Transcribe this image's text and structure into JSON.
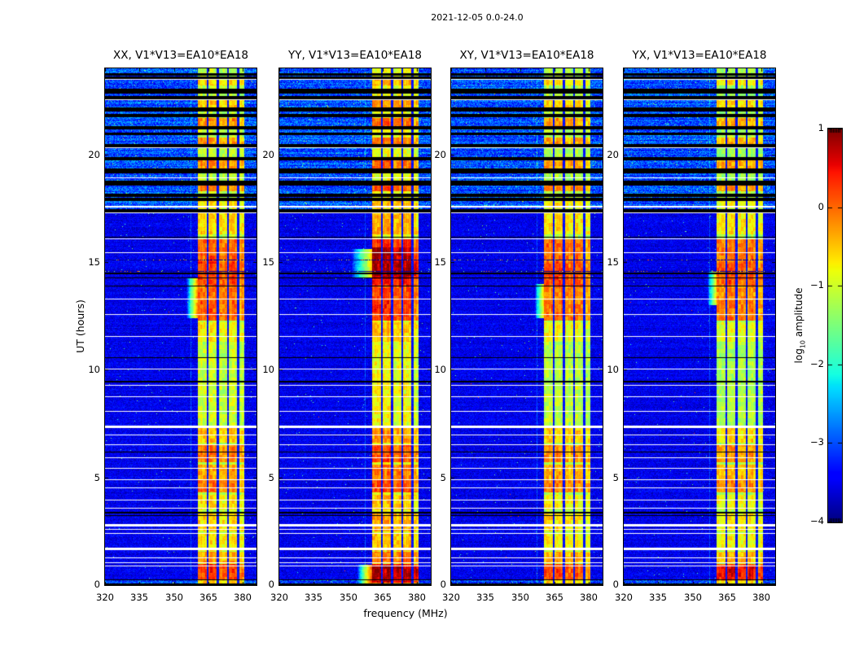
{
  "figure": {
    "title": "2021-12-05 0.0-24.0",
    "xlabel": "frequency (MHz)",
    "ylabel": "UT (hours)",
    "background_color": "#ffffff",
    "text_color": "#000000"
  },
  "chart_data": {
    "type": "heatmap",
    "title": "2021-12-05 0.0-24.0",
    "xlabel": "frequency (MHz)",
    "ylabel": "UT (hours)",
    "colormap": "jet",
    "subplots": [
      {
        "title": "XX, V1*V13=EA10*EA18"
      },
      {
        "title": "YY, V1*V13=EA10*EA18"
      },
      {
        "title": "XY, V1*V13=EA10*EA18"
      },
      {
        "title": "YX, V1*V13=EA10*EA18"
      }
    ],
    "x_range_mhz": [
      320,
      386
    ],
    "x_ticks": [
      "320",
      "335",
      "350",
      "365",
      "380"
    ],
    "x_tick_values": [
      320,
      335,
      350,
      365,
      380
    ],
    "y_range_hours": [
      0,
      24
    ],
    "y_ticks": [
      "0",
      "5",
      "10",
      "15",
      "20"
    ],
    "y_tick_values": [
      0,
      5,
      10,
      15,
      20
    ],
    "colorbar": {
      "label_prefix": "log",
      "label_sub": "10",
      "label_suffix": " amplitude",
      "ticks": [
        "1",
        "0",
        "−1",
        "−2",
        "−3",
        "−4"
      ],
      "tick_values": [
        1,
        0,
        -1,
        -2,
        -3,
        -4
      ],
      "vmin": -4,
      "vmax": 1
    },
    "features": {
      "rfi_band": {
        "freq_start": 360.3,
        "freq_stop": 380.6,
        "dividers_mhz": [
          364.8,
          369.2,
          373.6,
          378.0
        ],
        "divider_width_mhz": 0.85,
        "sub_gain": [
          1.0,
          1.05,
          0.95,
          1.0,
          0.8
        ]
      },
      "faint_line_mhz": 357.3,
      "noisy_top_region_hours": [
        17.35,
        24.0
      ],
      "white_rows": [
        [
          23.5,
          1
        ],
        [
          22.55,
          1
        ],
        [
          20.35,
          1
        ],
        [
          18.92,
          1
        ],
        [
          17.62,
          2
        ],
        [
          17.3,
          1
        ],
        [
          16.1,
          1
        ],
        [
          15.45,
          1
        ],
        [
          13.3,
          1
        ],
        [
          12.6,
          1
        ],
        [
          11.55,
          1
        ],
        [
          10.05,
          1
        ],
        [
          9.3,
          1
        ],
        [
          8.77,
          1
        ],
        [
          8.1,
          1
        ],
        [
          7.42,
          3
        ],
        [
          7.0,
          1
        ],
        [
          6.55,
          1
        ],
        [
          5.95,
          1
        ],
        [
          5.45,
          1
        ],
        [
          4.92,
          1
        ],
        [
          4.52,
          1
        ],
        [
          3.95,
          1
        ],
        [
          3.6,
          1
        ],
        [
          2.85,
          3
        ],
        [
          2.6,
          1
        ],
        [
          2.42,
          1
        ],
        [
          1.75,
          2
        ],
        [
          1.66,
          1
        ],
        [
          1.3,
          1
        ],
        [
          1.05,
          1
        ],
        [
          0.92,
          1
        ]
      ],
      "black_rows": [
        [
          16.18,
          1
        ],
        [
          14.5,
          2
        ],
        [
          14.3,
          1
        ],
        [
          13.9,
          1
        ],
        [
          10.6,
          1
        ],
        [
          9.5,
          2
        ],
        [
          6.18,
          1
        ],
        [
          3.42,
          2
        ],
        [
          3.25,
          1
        ],
        [
          0.28,
          1
        ],
        [
          0.06,
          2
        ]
      ],
      "speckle_rows_hours": [
        15.12,
        14.6
      ],
      "black_stripes_hours": [
        [
          23.78,
          23.68
        ],
        [
          23.62,
          23.55
        ],
        [
          23.05,
          22.88
        ],
        [
          22.7,
          22.62
        ],
        [
          22.18,
          22.05
        ],
        [
          21.88,
          21.78
        ],
        [
          21.32,
          21.22
        ],
        [
          21.02,
          20.95
        ],
        [
          20.48,
          20.35
        ],
        [
          19.88,
          19.75
        ],
        [
          19.35,
          19.18
        ],
        [
          18.78,
          18.6
        ],
        [
          18.18,
          18.05
        ],
        [
          17.98,
          17.88
        ],
        [
          17.48,
          17.35
        ]
      ],
      "activity_periods": [
        [
          0.0,
          0.25,
          0.6
        ],
        [
          0.25,
          1.0,
          1.0
        ],
        [
          1.05,
          1.55,
          0.7
        ],
        [
          1.6,
          2.4,
          0.5
        ],
        [
          2.5,
          3.4,
          0.55
        ],
        [
          3.5,
          4.2,
          0.5
        ],
        [
          4.3,
          4.9,
          0.85
        ],
        [
          4.9,
          5.6,
          0.7
        ],
        [
          5.7,
          6.5,
          0.8
        ],
        [
          6.6,
          7.4,
          0.6
        ],
        [
          7.6,
          9.5,
          0.3
        ],
        [
          9.6,
          11.2,
          0.28
        ],
        [
          11.3,
          12.2,
          0.45
        ],
        [
          12.3,
          13.2,
          0.9
        ],
        [
          13.2,
          13.9,
          0.85
        ],
        [
          13.9,
          15.0,
          1.0
        ],
        [
          15.0,
          16.1,
          0.9
        ],
        [
          16.3,
          17.3,
          0.55
        ],
        [
          17.5,
          17.9,
          0.5
        ],
        [
          18.3,
          18.75,
          0.8
        ],
        [
          19.35,
          19.8,
          0.75
        ],
        [
          20.3,
          20.8,
          0.7
        ],
        [
          21.2,
          21.7,
          0.75
        ],
        [
          22.2,
          22.6,
          0.6
        ],
        [
          23.2,
          23.6,
          0.55
        ]
      ],
      "default_activity": 0.25,
      "panels_extra": [
        {
          "name": "XX",
          "band_boost": 0,
          "extensions": [
            {
              "t": [
                12.4,
                14.3
              ],
              "f": [
                355.5,
                360.3
              ],
              "level": 0.75
            }
          ],
          "hot_spots": []
        },
        {
          "name": "YY",
          "band_boost": 0.12,
          "extensions": [
            {
              "t": [
                0.05,
                0.95
              ],
              "f": [
                354.0,
                360.3
              ],
              "level": 0.95
            },
            {
              "t": [
                14.3,
                15.6
              ],
              "f": [
                351.5,
                360.3
              ],
              "level": 0.5
            }
          ],
          "hot_spots": [
            {
              "t": [
                0.1,
                0.9
              ],
              "add": 0.5
            },
            {
              "t": [
                14.2,
                15.7
              ],
              "add": 0.3
            }
          ]
        },
        {
          "name": "XY",
          "band_boost": -0.05,
          "extensions": [
            {
              "t": [
                12.4,
                14.0
              ],
              "f": [
                356.5,
                360.3
              ],
              "level": 0.5
            }
          ],
          "hot_spots": []
        },
        {
          "name": "YX",
          "band_boost": -0.08,
          "extensions": [
            {
              "t": [
                13.0,
                14.6
              ],
              "f": [
                356.5,
                360.3
              ],
              "level": 0.45
            }
          ],
          "hot_spots": [
            {
              "t": [
                0.2,
                0.9
              ],
              "add": 0.25
            }
          ]
        }
      ]
    }
  }
}
